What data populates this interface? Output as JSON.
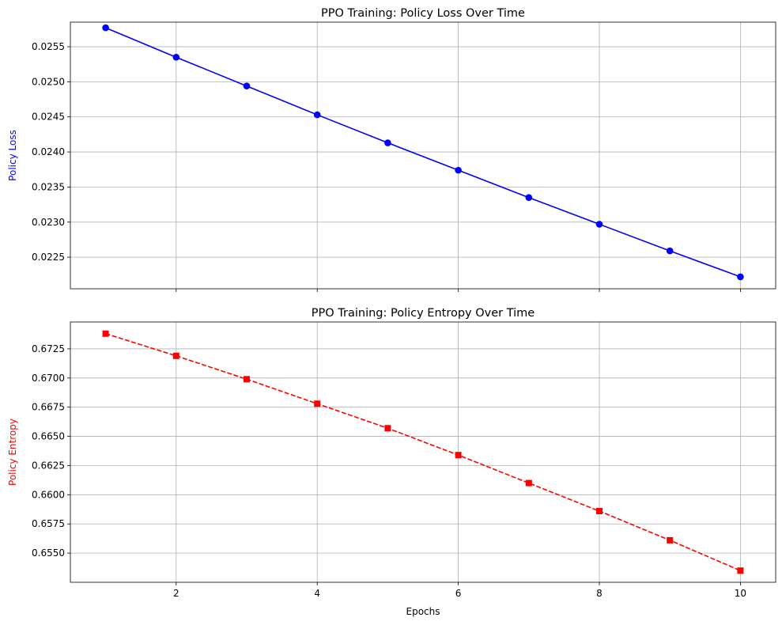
{
  "chart_data": [
    {
      "type": "line",
      "title": "PPO Training: Policy Loss Over Time",
      "xlabel": "",
      "ylabel": "Policy Loss",
      "ylabel_color": "#0000ff",
      "grid": true,
      "xlim": [
        0.5,
        10.5
      ],
      "ylim": [
        0.02205,
        0.02585
      ],
      "xticks": [
        2,
        4,
        6,
        8,
        10
      ],
      "xtick_labels_visible": false,
      "yticks": [
        0.0225,
        0.023,
        0.0235,
        0.024,
        0.0245,
        0.025,
        0.0255
      ],
      "ytick_labels": [
        "0.0225",
        "0.0230",
        "0.0235",
        "0.0240",
        "0.0245",
        "0.0250",
        "0.0255"
      ],
      "series": [
        {
          "x": [
            1,
            2,
            3,
            4,
            5,
            6,
            7,
            8,
            9,
            10
          ],
          "values": [
            0.02577,
            0.02535,
            0.02494,
            0.02453,
            0.02413,
            0.02374,
            0.02335,
            0.02297,
            0.02259,
            0.02222
          ],
          "color": "#0000ff",
          "linestyle": "solid",
          "marker": "circle"
        }
      ]
    },
    {
      "type": "line",
      "title": "PPO Training: Policy Entropy Over Time",
      "xlabel": "Epochs",
      "ylabel": "Policy Entropy",
      "ylabel_color": "#ff0000",
      "grid": true,
      "xlim": [
        0.5,
        10.5
      ],
      "ylim": [
        0.6525,
        0.6748
      ],
      "xticks": [
        2,
        4,
        6,
        8,
        10
      ],
      "xtick_labels": [
        "2",
        "4",
        "6",
        "8",
        "10"
      ],
      "yticks": [
        0.655,
        0.6575,
        0.66,
        0.6625,
        0.665,
        0.6675,
        0.67,
        0.6725
      ],
      "ytick_labels": [
        "0.6550",
        "0.6575",
        "0.6600",
        "0.6625",
        "0.6650",
        "0.6675",
        "0.6700",
        "0.6725"
      ],
      "series": [
        {
          "x": [
            1,
            2,
            3,
            4,
            5,
            6,
            7,
            8,
            9,
            10
          ],
          "values": [
            0.6738,
            0.6719,
            0.6699,
            0.6678,
            0.6657,
            0.6634,
            0.661,
            0.6586,
            0.6561,
            0.6535
          ],
          "color": "#ff0000",
          "linestyle": "dashed",
          "marker": "square"
        }
      ]
    }
  ]
}
